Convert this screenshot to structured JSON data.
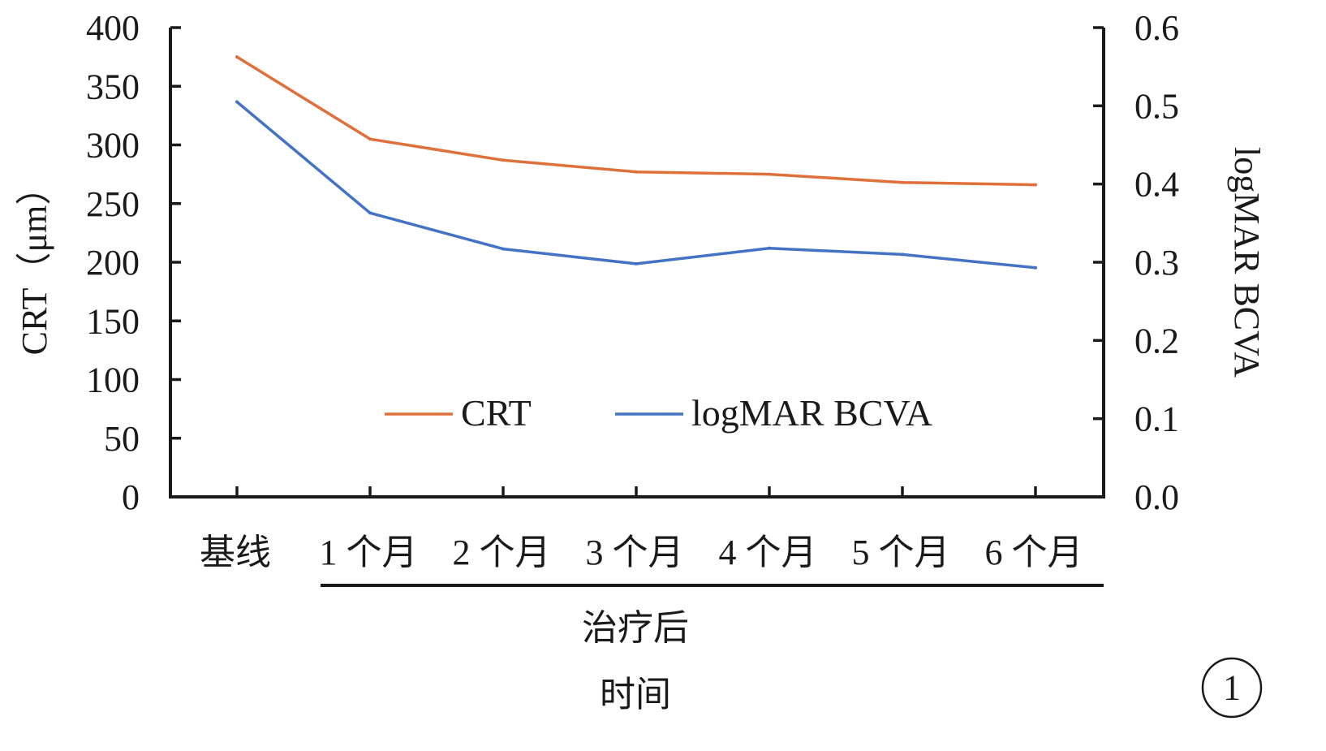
{
  "chart_data": {
    "type": "line",
    "categories": [
      "基线",
      "1 个月",
      "2 个月",
      "3 个月",
      "4 个月",
      "5 个月",
      "6 个月"
    ],
    "category_group_label": "治疗后",
    "xlabel": "时间",
    "ylabel_left": "CRT（μm）",
    "ylabel_right": "logMAR BCVA",
    "ylim_left": [
      0,
      400
    ],
    "yticks_left": [
      "0",
      "50",
      "100",
      "150",
      "200",
      "250",
      "300",
      "350",
      "400"
    ],
    "ylim_right": [
      0,
      0.6
    ],
    "yticks_right": [
      "0.0",
      "0.1",
      "0.2",
      "0.3",
      "0.4",
      "0.5",
      "0.6"
    ],
    "series": [
      {
        "name": "CRT",
        "axis": "left",
        "color": "#E0703B",
        "values": [
          375,
          305,
          287,
          277,
          275,
          268,
          266
        ]
      },
      {
        "name": "logMAR BCVA",
        "axis": "right",
        "color": "#4472C4",
        "values": [
          0.505,
          0.363,
          0.317,
          0.298,
          0.318,
          0.31,
          0.293
        ]
      }
    ],
    "legend_position": "inside-bottom-center",
    "grid": false,
    "panel_label": "1"
  }
}
